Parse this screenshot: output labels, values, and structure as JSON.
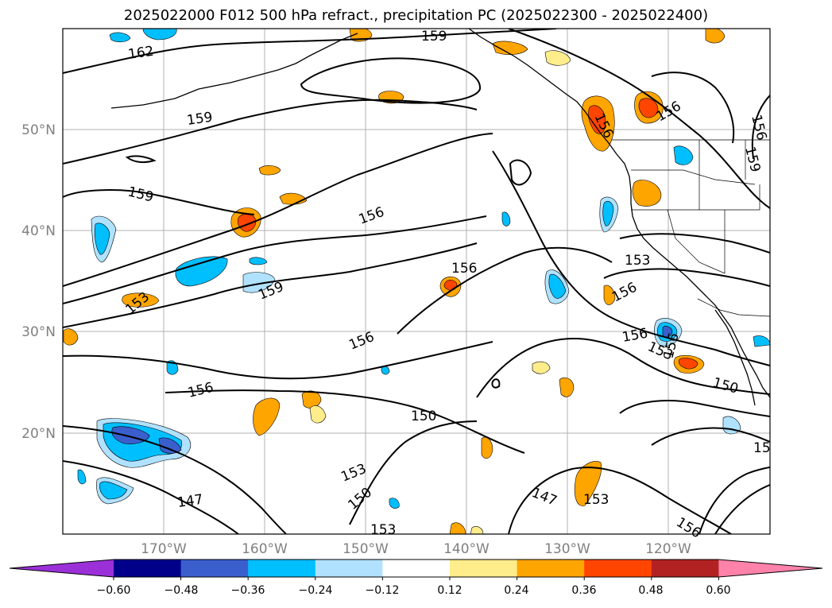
{
  "title": "2025022000 F012 500 hPa refract., precipitation PC (2025022300 - 2025022400)",
  "lat_labels": [
    "20°N",
    "30°N",
    "40°N",
    "50°N"
  ],
  "lon_labels": [
    "170°W",
    "160°W",
    "150°W",
    "140°W",
    "130°W",
    "120°W"
  ],
  "colorbar": {
    "colors": [
      "#9b30d9",
      "#00008b",
      "#3a5fcd",
      "#00bfff",
      "#b0e2ff",
      "#ffffff",
      "#ffec8b",
      "#ffa500",
      "#ff4500",
      "#b22222",
      "#ff82ab"
    ],
    "ticks": [
      "−0.60",
      "−0.48",
      "−0.36",
      "−0.24",
      "−0.12",
      "0.12",
      "0.24",
      "0.36",
      "0.48",
      "0.60"
    ]
  },
  "contour_labels": [
    {
      "text": "159"
    },
    {
      "text": "162"
    },
    {
      "text": "159"
    },
    {
      "text": "159"
    },
    {
      "text": "156"
    },
    {
      "text": "156"
    },
    {
      "text": "153"
    },
    {
      "text": "159"
    },
    {
      "text": "156"
    },
    {
      "text": "156"
    },
    {
      "text": "150"
    },
    {
      "text": "153"
    },
    {
      "text": "150"
    },
    {
      "text": "153"
    },
    {
      "text": "147"
    },
    {
      "text": "147"
    },
    {
      "text": "153"
    },
    {
      "text": "156"
    },
    {
      "text": "156"
    },
    {
      "text": "156"
    },
    {
      "text": "153"
    },
    {
      "text": "156"
    },
    {
      "text": "156"
    },
    {
      "text": "153"
    },
    {
      "text": "150"
    },
    {
      "text": "156"
    },
    {
      "text": "15"
    },
    {
      "text": "156"
    },
    {
      "text": "159"
    }
  ]
}
